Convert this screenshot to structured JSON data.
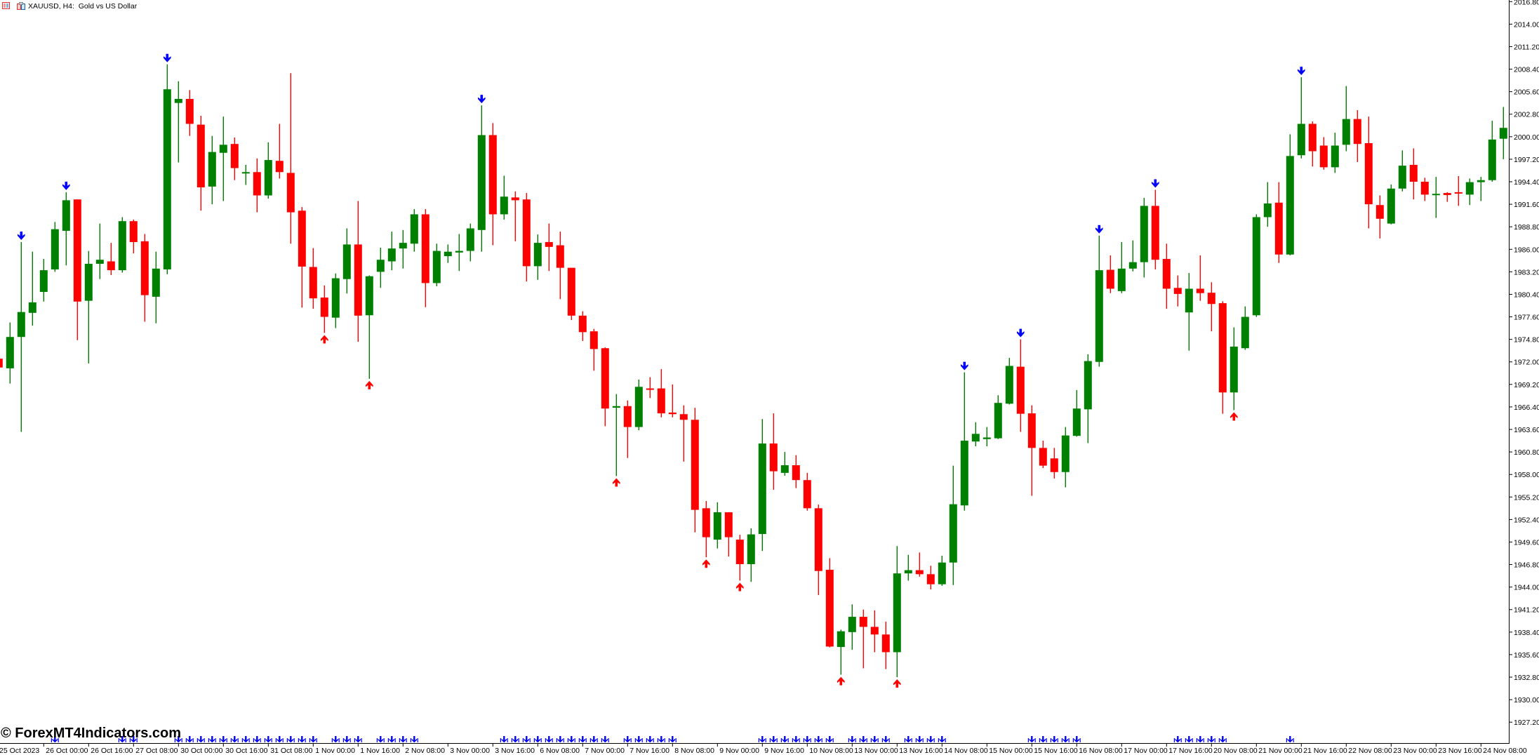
{
  "window": {
    "title": "XAUUSD, H4:  Gold vs US Dollar",
    "icons": [
      "chart-list-icon",
      "chart-window-icon"
    ]
  },
  "watermark": "© ForexMT4Indicators.com",
  "colors": {
    "background": "#ffffff",
    "bull_candle": "#008000",
    "bear_candle": "#ff0000",
    "sell_arrow": "#0000ff",
    "buy_arrow": "#ff0000",
    "bottom_marker": "#0000ff",
    "axis": "#000000"
  },
  "chart_data": {
    "type": "candlestick",
    "symbol": "XAUUSD",
    "timeframe": "H4",
    "title": "XAUUSD, H4:  Gold vs US Dollar",
    "grid": false,
    "legend": "none",
    "ylim": [
      1924.6,
      2017.0
    ],
    "ohlc_order": [
      "open",
      "high",
      "low",
      "close"
    ],
    "ohlc": [
      [
        1972.4,
        1973.1,
        1971.4,
        1971.3
      ],
      [
        1971.2,
        1976.9,
        1969.3,
        1975.1
      ],
      [
        1975.1,
        1986.9,
        1963.3,
        1978.2
      ],
      [
        1978.1,
        1985.7,
        1976.5,
        1979.4
      ],
      [
        1980.7,
        1984.8,
        1979.5,
        1983.4
      ],
      [
        1983.5,
        1989.4,
        1983.2,
        1988.5
      ],
      [
        1988.3,
        1993.1,
        1984.0,
        1992.1
      ],
      [
        1992.2,
        1992.2,
        1974.7,
        1979.5
      ],
      [
        1979.6,
        1985.8,
        1971.8,
        1984.2
      ],
      [
        1984.2,
        1989.2,
        1982.3,
        1984.7
      ],
      [
        1984.5,
        1986.8,
        1982.8,
        1983.4
      ],
      [
        1983.4,
        1990.0,
        1983.1,
        1989.5
      ],
      [
        1989.5,
        1989.7,
        1985.5,
        1986.9
      ],
      [
        1987.0,
        1987.9,
        1977.0,
        1980.3
      ],
      [
        1980.1,
        1985.7,
        1976.8,
        1983.6
      ],
      [
        1983.5,
        2009.0,
        1982.9,
        2005.9
      ],
      [
        2004.2,
        2006.9,
        1996.8,
        2004.7
      ],
      [
        2004.7,
        2005.8,
        2000.1,
        2001.6
      ],
      [
        2001.5,
        2002.6,
        1990.8,
        1993.7
      ],
      [
        1993.8,
        2000.1,
        1991.6,
        1998.1
      ],
      [
        1998.0,
        2002.5,
        1992.0,
        1999.0
      ],
      [
        1999.1,
        1999.9,
        1994.6,
        1996.1
      ],
      [
        1995.5,
        1996.5,
        1994.0,
        1995.6
      ],
      [
        1995.6,
        1997.3,
        1990.6,
        1992.7
      ],
      [
        1992.7,
        1999.3,
        1992.3,
        1997.1
      ],
      [
        1997.0,
        2001.6,
        1994.8,
        1995.6
      ],
      [
        1995.5,
        2007.9,
        1986.7,
        1990.6
      ],
      [
        1990.8,
        1991.25,
        1978.75,
        1983.85
      ],
      [
        1983.8,
        1986.15,
        1978.6,
        1979.9
      ],
      [
        1980.0,
        1981.5,
        1975.6,
        1977.6
      ],
      [
        1977.5,
        1983.0,
        1976.2,
        1982.4
      ],
      [
        1982.3,
        1988.6,
        1980.5,
        1986.6
      ],
      [
        1986.6,
        1992.0,
        1974.5,
        1977.75
      ],
      [
        1977.8,
        1982.75,
        1969.9,
        1982.65
      ],
      [
        1983.2,
        1986.2,
        1981.2,
        1984.7
      ],
      [
        1984.5,
        1988.2,
        1983.4,
        1986.1
      ],
      [
        1986.1,
        1988.4,
        1983.6,
        1986.8
      ],
      [
        1986.7,
        1991.0,
        1985.7,
        1990.35
      ],
      [
        1990.35,
        1991.0,
        1978.8,
        1981.8
      ],
      [
        1981.8,
        1986.7,
        1981.4,
        1985.8
      ],
      [
        1985.15,
        1986.6,
        1984.3,
        1985.7
      ],
      [
        1985.6,
        1987.9,
        1983.3,
        1985.8
      ],
      [
        1985.8,
        1989.2,
        1984.5,
        1988.6
      ],
      [
        1988.4,
        2003.9,
        1985.7,
        2000.2
      ],
      [
        2000.2,
        2001.7,
        1986.5,
        1990.35
      ],
      [
        1990.35,
        1995.15,
        1989.7,
        1992.55
      ],
      [
        1992.45,
        1993.2,
        1987.0,
        1992.1
      ],
      [
        1992.2,
        1993.0,
        1982.0,
        1983.9
      ],
      [
        1983.9,
        1987.85,
        1982.2,
        1986.8
      ],
      [
        1986.9,
        1989.2,
        1983.3,
        1986.3
      ],
      [
        1986.5,
        1988.2,
        1979.8,
        1983.7
      ],
      [
        1983.7,
        1983.7,
        1977.2,
        1977.75
      ],
      [
        1977.75,
        1978.3,
        1974.6,
        1975.7
      ],
      [
        1975.8,
        1976.1,
        1970.9,
        1973.6
      ],
      [
        1973.7,
        1973.8,
        1964.0,
        1966.2
      ],
      [
        1966.3,
        1968.0,
        1957.8,
        1966.5
      ],
      [
        1966.5,
        1967.2,
        1960.05,
        1963.9
      ],
      [
        1963.9,
        1969.8,
        1963.5,
        1968.9
      ],
      [
        1968.7,
        1970.1,
        1967.5,
        1968.6
      ],
      [
        1968.7,
        1971.1,
        1965.1,
        1965.6
      ],
      [
        1965.7,
        1969.2,
        1965.1,
        1965.5
      ],
      [
        1965.5,
        1966.6,
        1959.6,
        1964.8
      ],
      [
        1964.8,
        1966.3,
        1950.8,
        1953.6
      ],
      [
        1953.8,
        1954.7,
        1947.7,
        1950.2
      ],
      [
        1949.9,
        1954.55,
        1948.8,
        1953.3
      ],
      [
        1953.3,
        1953.3,
        1947.8,
        1950.2
      ],
      [
        1949.9,
        1950.5,
        1944.8,
        1946.85
      ],
      [
        1946.85,
        1951.3,
        1944.65,
        1950.55
      ],
      [
        1950.6,
        1964.9,
        1948.5,
        1961.85
      ],
      [
        1961.85,
        1965.6,
        1956.1,
        1958.4
      ],
      [
        1958.2,
        1960.8,
        1957.85,
        1959.15
      ],
      [
        1959.15,
        1960.4,
        1956.3,
        1957.3
      ],
      [
        1957.3,
        1958.2,
        1953.5,
        1953.8
      ],
      [
        1953.8,
        1954.25,
        1943.0,
        1946.0
      ],
      [
        1946.15,
        1947.6,
        1936.5,
        1936.6
      ],
      [
        1936.55,
        1938.7,
        1933.1,
        1938.5
      ],
      [
        1938.4,
        1941.85,
        1936.2,
        1940.3
      ],
      [
        1940.3,
        1941.2,
        1933.9,
        1939.05
      ],
      [
        1939.05,
        1941.1,
        1935.9,
        1938.1
      ],
      [
        1938.1,
        1939.7,
        1933.8,
        1935.9
      ],
      [
        1935.9,
        1949.1,
        1932.8,
        1945.7
      ],
      [
        1945.7,
        1948.0,
        1944.8,
        1946.1
      ],
      [
        1946.1,
        1948.3,
        1945.3,
        1945.6
      ],
      [
        1945.6,
        1946.65,
        1943.7,
        1944.35
      ],
      [
        1944.35,
        1947.9,
        1944.15,
        1947.05
      ],
      [
        1947.05,
        1959.1,
        1944.25,
        1954.3
      ],
      [
        1954.15,
        1970.7,
        1953.5,
        1962.2
      ],
      [
        1962.1,
        1964.5,
        1961.5,
        1963.05
      ],
      [
        1962.4,
        1963.9,
        1961.5,
        1962.6
      ],
      [
        1962.5,
        1967.85,
        1962.4,
        1966.9
      ],
      [
        1966.8,
        1972.5,
        1966.7,
        1971.5
      ],
      [
        1971.4,
        1974.8,
        1963.3,
        1965.55
      ],
      [
        1965.6,
        1966.6,
        1955.35,
        1961.3
      ],
      [
        1961.3,
        1962.2,
        1958.8,
        1959.1
      ],
      [
        1960.0,
        1961.3,
        1957.5,
        1958.3
      ],
      [
        1958.3,
        1963.9,
        1956.4,
        1962.85
      ],
      [
        1962.8,
        1968.5,
        1962.7,
        1966.2
      ],
      [
        1966.1,
        1972.95,
        1961.9,
        1972.1
      ],
      [
        1972.0,
        1987.7,
        1971.4,
        1983.4
      ],
      [
        1983.45,
        1985.25,
        1980.55,
        1981.1
      ],
      [
        1980.8,
        1986.9,
        1980.55,
        1983.6
      ],
      [
        1983.6,
        1987.1,
        1983.25,
        1984.4
      ],
      [
        1984.4,
        1992.4,
        1982.5,
        1991.4
      ],
      [
        1991.4,
        1993.4,
        1983.5,
        1984.7
      ],
      [
        1984.8,
        1986.7,
        1978.6,
        1981.1
      ],
      [
        1981.2,
        1982.75,
        1978.9,
        1980.45
      ],
      [
        1978.15,
        1983.05,
        1973.4,
        1981.1
      ],
      [
        1981.1,
        1985.25,
        1979.6,
        1980.55
      ],
      [
        1980.6,
        1981.9,
        1975.8,
        1979.2
      ],
      [
        1979.3,
        1979.55,
        1965.55,
        1968.2
      ],
      [
        1968.2,
        1976.3,
        1966.0,
        1973.9
      ],
      [
        1973.7,
        1978.9,
        1973.5,
        1977.6
      ],
      [
        1977.8,
        1990.35,
        1977.6,
        1990.0
      ],
      [
        1990.0,
        1994.35,
        1988.8,
        1991.7
      ],
      [
        1991.8,
        1994.35,
        1984.3,
        1985.35
      ],
      [
        1985.35,
        2000.3,
        1985.25,
        1997.6
      ],
      [
        1997.7,
        2007.4,
        1997.3,
        2001.6
      ],
      [
        2001.6,
        2001.9,
        1996.3,
        1998.2
      ],
      [
        1998.9,
        1999.95,
        1995.9,
        1996.2
      ],
      [
        1996.2,
        2000.5,
        1995.5,
        1998.9
      ],
      [
        1999.0,
        2006.3,
        1998.2,
        2002.2
      ],
      [
        2002.2,
        2003.3,
        1996.85,
        1999.1
      ],
      [
        1999.2,
        2002.5,
        1988.6,
        1991.6
      ],
      [
        1991.5,
        1992.7,
        1987.35,
        1989.8
      ],
      [
        1989.2,
        1994.05,
        1989.1,
        1993.55
      ],
      [
        1993.55,
        1998.3,
        1993.2,
        1996.4
      ],
      [
        1996.5,
        1998.55,
        1992.2,
        1994.4
      ],
      [
        1994.4,
        1994.9,
        1992.0,
        1992.8
      ],
      [
        1992.8,
        1995.0,
        1989.9,
        1992.9
      ],
      [
        1993.0,
        1993.1,
        1991.9,
        1992.75
      ],
      [
        1993.1,
        1995.1,
        1991.4,
        1992.95
      ],
      [
        1992.8,
        1994.8,
        1991.5,
        1994.35
      ],
      [
        1994.35,
        1995.0,
        1992.0,
        1994.6
      ],
      [
        1994.6,
        2001.98,
        1994.4,
        1999.65
      ],
      [
        1999.75,
        2003.7,
        1997.2,
        2001.1
      ]
    ],
    "x_tick_labels": [
      "25 Oct 2023",
      "26 Oct 00:00",
      "26 Oct 16:00",
      "27 Oct 08:00",
      "30 Oct 00:00",
      "30 Oct 16:00",
      "31 Oct 08:00",
      "1 Nov 00:00",
      "1 Nov 16:00",
      "2 Nov 08:00",
      "3 Nov 00:00",
      "3 Nov 16:00",
      "6 Nov 08:00",
      "7 Nov 00:00",
      "7 Nov 16:00",
      "8 Nov 08:00",
      "9 Nov 00:00",
      "9 Nov 16:00",
      "10 Nov 08:00",
      "13 Nov 00:00",
      "13 Nov 16:00",
      "14 Nov 08:00",
      "15 Nov 00:00",
      "15 Nov 16:00",
      "16 Nov 08:00",
      "17 Nov 00:00",
      "17 Nov 16:00",
      "20 Nov 08:00",
      "21 Nov 00:00",
      "21 Nov 16:00",
      "22 Nov 08:00",
      "23 Nov 00:00",
      "23 Nov 16:00",
      "24 Nov 08:00"
    ],
    "y_tick_labels": [
      "2016.80",
      "2014.00",
      "2011.20",
      "2008.40",
      "2005.60",
      "2002.80",
      "2000.00",
      "1997.20",
      "1994.40",
      "1991.60",
      "1988.80",
      "1986.00",
      "1983.20",
      "1980.40",
      "1977.60",
      "1974.80",
      "1972.00",
      "1969.20",
      "1966.40",
      "1963.60",
      "1960.80",
      "1958.00",
      "1955.20",
      "1952.40",
      "1949.60",
      "1946.80",
      "1944.00",
      "1941.20",
      "1938.40",
      "1935.60",
      "1932.80",
      "1930.00",
      "1927.20"
    ],
    "signals": {
      "sell_arrow_bars": [
        2,
        6,
        15,
        43,
        86,
        91,
        98,
        103,
        116
      ],
      "buy_arrow_bars": [
        29,
        33,
        55,
        63,
        66,
        75,
        80,
        110
      ]
    },
    "bottom_marker_bars": [
      5,
      11,
      12,
      16,
      17,
      18,
      19,
      20,
      21,
      22,
      23,
      24,
      25,
      26,
      27,
      28,
      30,
      31,
      32,
      34,
      35,
      36,
      37,
      45,
      46,
      47,
      48,
      49,
      50,
      51,
      52,
      53,
      54,
      56,
      57,
      58,
      59,
      60,
      68,
      69,
      70,
      71,
      72,
      73,
      74,
      76,
      77,
      78,
      79,
      81,
      82,
      83,
      84,
      92,
      93,
      94,
      95,
      96,
      105,
      106,
      107,
      108,
      109,
      115
    ]
  }
}
